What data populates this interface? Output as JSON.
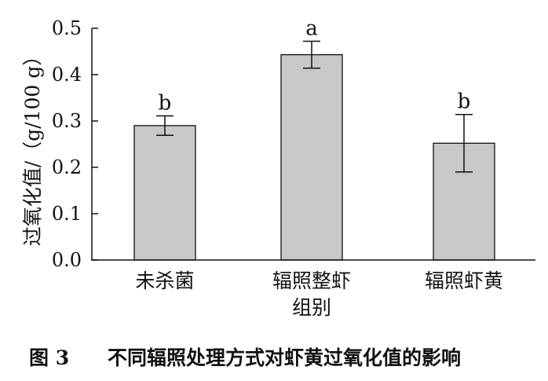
{
  "chart_data": {
    "type": "bar",
    "categories": [
      "未杀菌",
      "辐照整虾组别",
      "辐照虾黄"
    ],
    "values": [
      0.29,
      0.443,
      0.252
    ],
    "error": [
      0.021,
      0.029,
      0.062
    ],
    "significance": [
      "b",
      "a",
      "b"
    ],
    "ylabel": "过氧化值/（g/100 g）",
    "xlabel": "组别",
    "ylim": [
      0,
      0.5
    ],
    "yticks": [
      "0.0",
      "0.1",
      "0.2",
      "0.3",
      "0.4",
      "0.5"
    ],
    "bar_color": "#c8c8c8",
    "grid": false
  },
  "caption": {
    "figure_no": "图 3",
    "text": "不同辐照处理方式对虾黄过氧化值的影响"
  }
}
